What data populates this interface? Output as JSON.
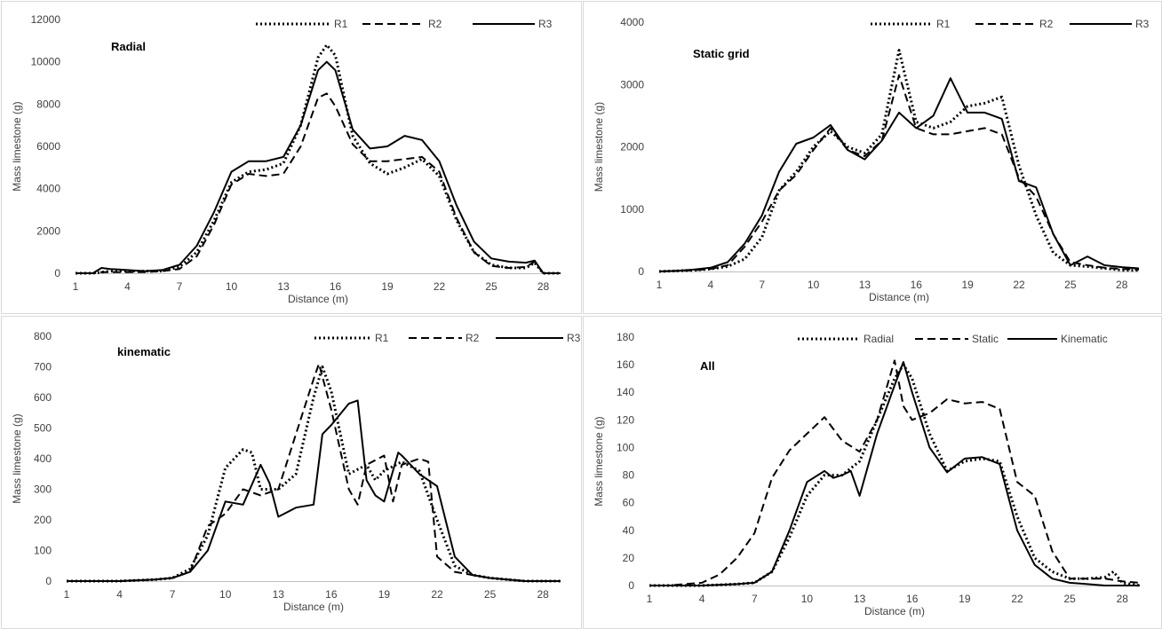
{
  "chart_data": [
    {
      "type": "line",
      "title": "Radial",
      "xlabel": "Distance (m)",
      "ylabel": "Mass limestone (g)",
      "xlim": [
        1,
        29
      ],
      "ylim": [
        0,
        12000
      ],
      "xticks": [
        1,
        4,
        7,
        10,
        13,
        16,
        19,
        22,
        25,
        28
      ],
      "yticks": [
        0,
        2000,
        4000,
        6000,
        8000,
        10000,
        12000
      ],
      "legend_position": "top-right",
      "series": [
        {
          "name": "R1",
          "style": "dotted",
          "x": [
            1,
            2,
            2.5,
            3,
            4,
            5,
            6,
            7,
            8,
            9,
            10,
            11,
            12,
            13,
            14,
            15,
            15.5,
            16,
            17,
            18,
            19,
            20,
            21,
            22,
            23,
            24,
            25,
            26,
            27,
            27.5,
            28,
            29
          ],
          "y": [
            0,
            0,
            50,
            100,
            100,
            100,
            100,
            300,
            1000,
            2500,
            4300,
            4800,
            4900,
            5200,
            7000,
            10200,
            10800,
            10300,
            6500,
            5200,
            4700,
            5000,
            5400,
            4600,
            2500,
            1000,
            400,
            250,
            250,
            500,
            0,
            0
          ]
        },
        {
          "name": "R2",
          "style": "dashed",
          "x": [
            1,
            2,
            2.5,
            3,
            4,
            5,
            6,
            7,
            8,
            9,
            10,
            11,
            12,
            13,
            14,
            15,
            15.5,
            16,
            17,
            18,
            19,
            20,
            21,
            22,
            23,
            24,
            25,
            26,
            27,
            27.5,
            28,
            29
          ],
          "y": [
            0,
            0,
            50,
            50,
            50,
            50,
            100,
            200,
            800,
            2300,
            4200,
            4700,
            4600,
            4700,
            6000,
            8300,
            8500,
            7900,
            6100,
            5300,
            5300,
            5400,
            5500,
            4800,
            2600,
            1000,
            350,
            250,
            300,
            550,
            0,
            0
          ]
        },
        {
          "name": "R3",
          "style": "solid",
          "x": [
            1,
            2,
            2.5,
            3,
            4,
            5,
            6,
            7,
            8,
            9,
            10,
            11,
            12,
            13,
            14,
            15,
            15.5,
            16,
            17,
            18,
            19,
            20,
            21,
            22,
            23,
            24,
            25,
            26,
            27,
            27.5,
            28,
            29
          ],
          "y": [
            0,
            0,
            250,
            200,
            150,
            100,
            150,
            400,
            1300,
            2900,
            4800,
            5300,
            5300,
            5500,
            7000,
            9600,
            10000,
            9600,
            6800,
            5900,
            6000,
            6500,
            6300,
            5300,
            3200,
            1500,
            700,
            550,
            500,
            600,
            0,
            0
          ]
        }
      ]
    },
    {
      "type": "line",
      "title": "Static grid",
      "xlabel": "Distance (m)",
      "ylabel": "Mass limestone (g)",
      "xlim": [
        1,
        29
      ],
      "ylim": [
        0,
        4000
      ],
      "xticks": [
        1,
        4,
        7,
        10,
        13,
        16,
        19,
        22,
        25,
        28
      ],
      "yticks": [
        0,
        1000,
        2000,
        3000,
        4000
      ],
      "legend_position": "top-right",
      "series": [
        {
          "name": "R1",
          "style": "dotted",
          "x": [
            1,
            2,
            3,
            4,
            5,
            6,
            7,
            8,
            9,
            10,
            11,
            12,
            13,
            14,
            15,
            16,
            17,
            18,
            19,
            20,
            21,
            22,
            23,
            24,
            25,
            26,
            27,
            28,
            29
          ],
          "y": [
            0,
            10,
            20,
            40,
            80,
            200,
            550,
            1300,
            1600,
            2000,
            2250,
            2000,
            1900,
            2200,
            3550,
            2400,
            2300,
            2400,
            2650,
            2700,
            2800,
            1700,
            900,
            300,
            100,
            80,
            50,
            20,
            20
          ]
        },
        {
          "name": "R2",
          "style": "dashed",
          "x": [
            1,
            2,
            3,
            4,
            5,
            6,
            7,
            8,
            9,
            10,
            11,
            12,
            13,
            14,
            15,
            16,
            17,
            18,
            19,
            20,
            21,
            22,
            23,
            24,
            25,
            26,
            27,
            28,
            29
          ],
          "y": [
            0,
            10,
            20,
            40,
            100,
            400,
            800,
            1300,
            1550,
            1950,
            2300,
            1950,
            1850,
            2100,
            3150,
            2300,
            2200,
            2200,
            2250,
            2300,
            2200,
            1500,
            1200,
            600,
            150,
            100,
            60,
            40,
            30
          ]
        },
        {
          "name": "R3",
          "style": "solid",
          "x": [
            1,
            2,
            3,
            4,
            5,
            6,
            7,
            8,
            9,
            10,
            11,
            12,
            13,
            14,
            15,
            16,
            17,
            18,
            19,
            20,
            21,
            22,
            23,
            24,
            25,
            26,
            27,
            28,
            29
          ],
          "y": [
            0,
            10,
            30,
            60,
            150,
            450,
            900,
            1600,
            2050,
            2150,
            2350,
            1950,
            1800,
            2100,
            2550,
            2300,
            2500,
            3100,
            2550,
            2550,
            2450,
            1450,
            1350,
            600,
            100,
            240,
            100,
            70,
            50
          ]
        }
      ]
    },
    {
      "type": "line",
      "title": "kinematic",
      "xlabel": "Distance (m)",
      "ylabel": "Mass limestone (g)",
      "xlim": [
        1,
        29
      ],
      "ylim": [
        0,
        800
      ],
      "xticks": [
        1,
        4,
        7,
        10,
        13,
        16,
        19,
        22,
        25,
        28
      ],
      "yticks": [
        0,
        100,
        200,
        300,
        400,
        500,
        600,
        700,
        800
      ],
      "legend_position": "top-right",
      "series": [
        {
          "name": "R1",
          "style": "dotted",
          "x": [
            1,
            4,
            6,
            7,
            8,
            9,
            10,
            11,
            11.5,
            12,
            13,
            14,
            15,
            15.5,
            16,
            17,
            18,
            18.5,
            19,
            20,
            21,
            22,
            23,
            24,
            25,
            26,
            27,
            28,
            29
          ],
          "y": [
            0,
            0,
            5,
            10,
            40,
            150,
            370,
            430,
            420,
            300,
            300,
            350,
            600,
            700,
            620,
            350,
            380,
            330,
            360,
            390,
            360,
            200,
            50,
            20,
            10,
            5,
            0,
            0,
            0
          ]
        },
        {
          "name": "R2",
          "style": "dashed",
          "x": [
            1,
            4,
            6,
            7,
            8,
            9,
            10,
            11,
            12,
            13,
            14,
            15,
            15.3,
            16,
            17,
            17.5,
            18,
            19,
            19.5,
            20,
            21,
            21.5,
            22,
            23,
            24,
            25,
            26,
            27,
            28,
            29
          ],
          "y": [
            0,
            0,
            5,
            10,
            30,
            180,
            220,
            300,
            280,
            300,
            480,
            660,
            710,
            560,
            300,
            250,
            380,
            410,
            260,
            380,
            400,
            390,
            80,
            30,
            20,
            10,
            5,
            0,
            0,
            0
          ]
        },
        {
          "name": "R3",
          "style": "solid",
          "x": [
            1,
            4,
            6,
            7,
            8,
            9,
            10,
            11,
            12,
            12.5,
            13,
            14,
            15,
            15.5,
            16,
            17,
            17.5,
            18,
            18.5,
            19,
            19.8,
            20,
            21,
            22,
            23,
            24,
            25,
            26,
            27,
            28,
            29
          ],
          "y": [
            0,
            0,
            5,
            10,
            30,
            100,
            260,
            250,
            380,
            320,
            210,
            240,
            250,
            480,
            510,
            580,
            590,
            330,
            280,
            260,
            420,
            410,
            350,
            310,
            80,
            20,
            10,
            5,
            0,
            0,
            0
          ]
        }
      ]
    },
    {
      "type": "line",
      "title": "All",
      "xlabel": "Distance (m)",
      "ylabel": "Mass limestone (g)",
      "xlim": [
        1,
        29
      ],
      "ylim": [
        0,
        180
      ],
      "xticks": [
        1,
        4,
        7,
        10,
        13,
        16,
        19,
        22,
        25,
        28
      ],
      "yticks": [
        0,
        20,
        40,
        60,
        80,
        100,
        120,
        140,
        160,
        180
      ],
      "legend_position": "top-right",
      "series": [
        {
          "name": "Radial",
          "style": "dotted",
          "x": [
            1,
            4,
            6,
            7,
            8,
            9,
            10,
            11,
            12,
            12.5,
            13,
            14,
            15,
            15.5,
            16,
            17,
            18,
            19,
            20,
            21,
            22,
            23,
            24,
            25,
            26,
            27,
            27.5,
            28,
            29
          ],
          "y": [
            0,
            0,
            1,
            2,
            10,
            35,
            65,
            80,
            80,
            85,
            90,
            120,
            150,
            160,
            150,
            110,
            83,
            90,
            92,
            90,
            50,
            20,
            10,
            5,
            5,
            6,
            10,
            2,
            0
          ]
        },
        {
          "name": "Static",
          "style": "dashed",
          "x": [
            1,
            2,
            3,
            4,
            5,
            6,
            7,
            8,
            9,
            10,
            11,
            12,
            13,
            14,
            15,
            15.5,
            16,
            17,
            18,
            19,
            20,
            21,
            22,
            23,
            24,
            25,
            26,
            27,
            28,
            29
          ],
          "y": [
            0,
            0,
            1,
            2,
            8,
            20,
            38,
            78,
            98,
            110,
            122,
            105,
            97,
            120,
            163,
            130,
            120,
            125,
            135,
            132,
            133,
            128,
            75,
            65,
            25,
            5,
            5,
            5,
            3,
            2
          ]
        },
        {
          "name": "Kinematic",
          "style": "solid",
          "x": [
            1,
            4,
            6,
            7,
            8,
            9,
            10,
            11,
            11.5,
            12,
            12.5,
            13,
            14,
            15,
            15.5,
            16,
            17,
            18,
            19,
            20,
            21,
            22,
            23,
            24,
            25,
            26,
            27,
            28,
            29
          ],
          "y": [
            0,
            0,
            1,
            2,
            10,
            40,
            75,
            83,
            78,
            80,
            83,
            65,
            110,
            145,
            162,
            140,
            100,
            82,
            92,
            93,
            88,
            40,
            15,
            5,
            2,
            1,
            0,
            0,
            0
          ]
        }
      ]
    }
  ]
}
